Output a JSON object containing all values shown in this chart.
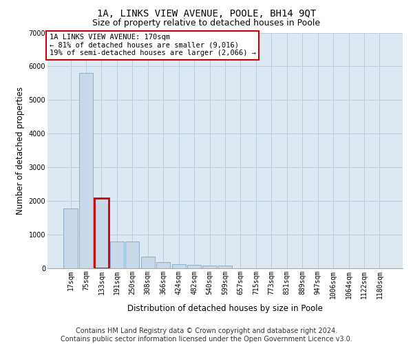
{
  "title": "1A, LINKS VIEW AVENUE, POOLE, BH14 9QT",
  "subtitle": "Size of property relative to detached houses in Poole",
  "xlabel": "Distribution of detached houses by size in Poole",
  "ylabel": "Number of detached properties",
  "footer_line1": "Contains HM Land Registry data © Crown copyright and database right 2024.",
  "footer_line2": "Contains public sector information licensed under the Open Government Licence v3.0.",
  "annotation_line1": "1A LINKS VIEW AVENUE: 170sqm",
  "annotation_line2": "← 81% of detached houses are smaller (9,016)",
  "annotation_line3": "19% of semi-detached houses are larger (2,066) →",
  "bar_labels": [
    "17sqm",
    "75sqm",
    "133sqm",
    "191sqm",
    "250sqm",
    "308sqm",
    "366sqm",
    "424sqm",
    "482sqm",
    "540sqm",
    "599sqm",
    "657sqm",
    "715sqm",
    "773sqm",
    "831sqm",
    "889sqm",
    "947sqm",
    "1006sqm",
    "1064sqm",
    "1122sqm",
    "1180sqm"
  ],
  "bar_values": [
    1780,
    5800,
    2080,
    800,
    790,
    340,
    185,
    115,
    95,
    85,
    80,
    0,
    0,
    0,
    0,
    0,
    0,
    0,
    0,
    0,
    0
  ],
  "bar_color": "#c8d8e8",
  "bar_edge_color": "#7aaac8",
  "highlight_bar_index": 2,
  "highlight_edge_color": "#cc0000",
  "annotation_box_color": "#cc0000",
  "ylim": [
    0,
    7000
  ],
  "yticks": [
    0,
    1000,
    2000,
    3000,
    4000,
    5000,
    6000,
    7000
  ],
  "grid_color": "#bbccdd",
  "bg_color": "#dce8f2",
  "title_fontsize": 10,
  "subtitle_fontsize": 9,
  "axis_label_fontsize": 8.5,
  "tick_fontsize": 7,
  "annotation_fontsize": 7.5,
  "footer_fontsize": 7
}
